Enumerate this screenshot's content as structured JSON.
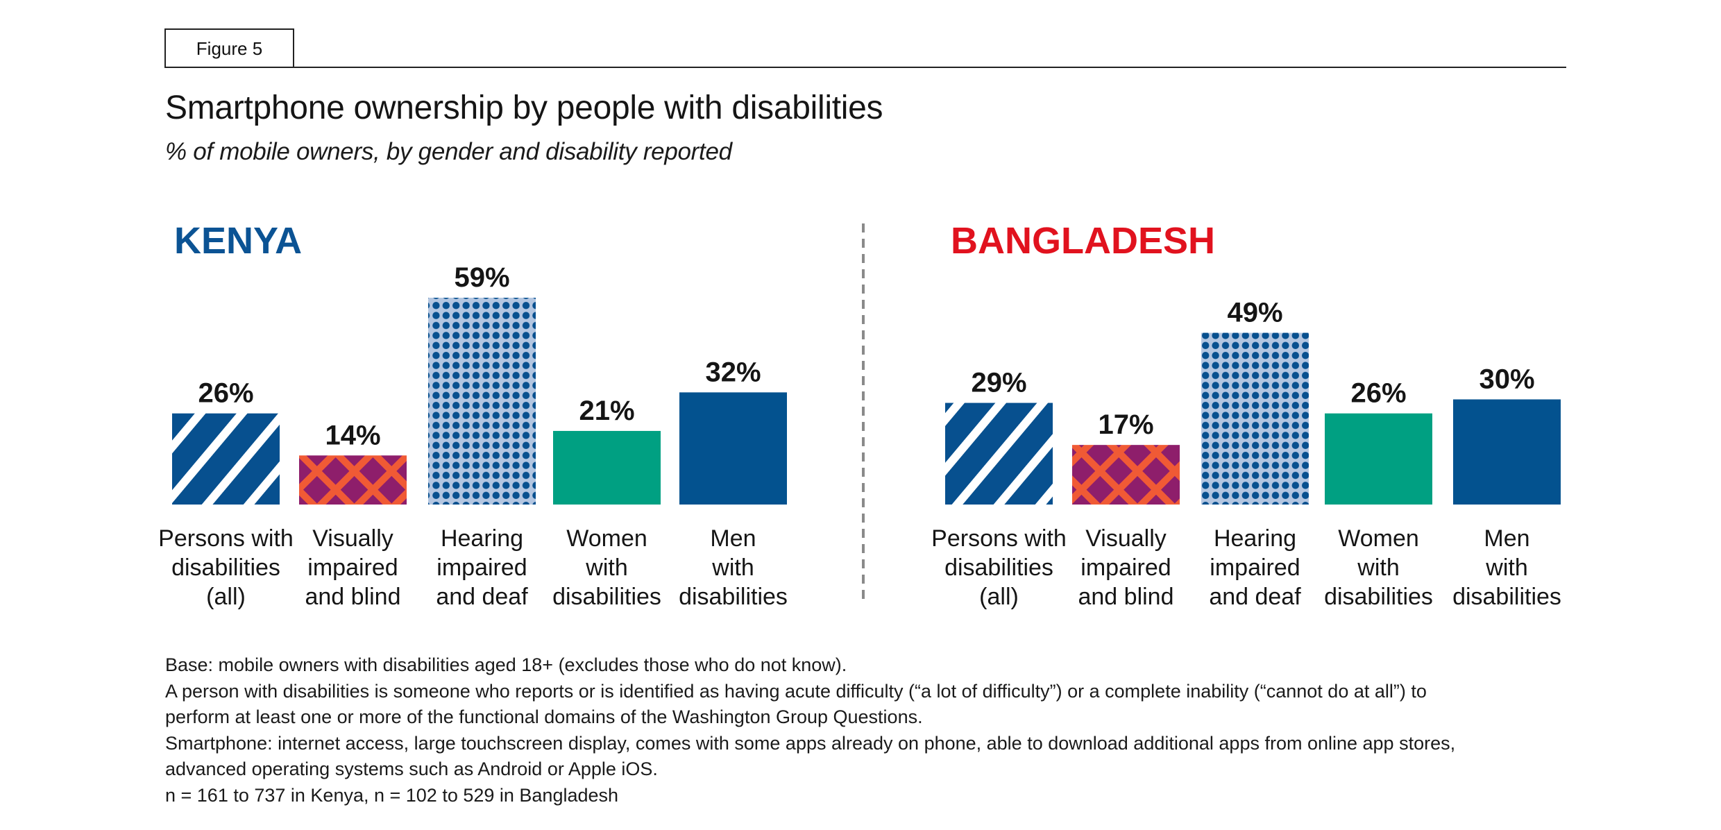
{
  "figure_label": "Figure 5",
  "title": "Smartphone ownership by people with disabilities",
  "subtitle": "% of mobile owners, by gender and disability reported",
  "colors": {
    "kenya_title": "#0B5394",
    "bangladesh_title": "#E1121E",
    "stripe_blue": "#07508F",
    "lattice_orange": "#F05A35",
    "lattice_purple": "#8E1E6B",
    "dot_blue": "#07508F",
    "dot_bg": "#B3C6E1",
    "teal": "#00A082",
    "navy": "#03528F"
  },
  "chart_data": [
    {
      "type": "bar",
      "title": "KENYA",
      "categories": [
        [
          "Persons with",
          "disabilities",
          "(all)"
        ],
        [
          "Visually",
          "impaired",
          "and blind"
        ],
        [
          "Hearing",
          "impaired",
          "and deaf"
        ],
        [
          "Women",
          "with",
          "disabilities"
        ],
        [
          "Men",
          "with",
          "disabilities"
        ]
      ],
      "values": [
        26,
        14,
        59,
        21,
        32
      ],
      "value_labels": [
        "26%",
        "14%",
        "59%",
        "21%",
        "32%"
      ],
      "fills": [
        "stripes",
        "lattice",
        "dots",
        "teal",
        "navy"
      ],
      "xlabel": "",
      "ylabel": "% of mobile owners",
      "ylim": [
        0,
        100
      ],
      "grid": false
    },
    {
      "type": "bar",
      "title": "BANGLADESH",
      "categories": [
        [
          "Persons with",
          "disabilities",
          "(all)"
        ],
        [
          "Visually",
          "impaired",
          "and blind"
        ],
        [
          "Hearing",
          "impaired",
          "and deaf"
        ],
        [
          "Women",
          "with",
          "disabilities"
        ],
        [
          "Men",
          "with",
          "disabilities"
        ]
      ],
      "values": [
        29,
        17,
        49,
        26,
        30
      ],
      "value_labels": [
        "29%",
        "17%",
        "49%",
        "26%",
        "30%"
      ],
      "fills": [
        "stripes",
        "lattice",
        "dots",
        "teal",
        "navy"
      ],
      "xlabel": "",
      "ylabel": "% of mobile owners",
      "ylim": [
        0,
        100
      ],
      "grid": false
    }
  ],
  "notes": [
    "Base: mobile owners with disabilities aged 18+ (excludes those who do not know).",
    "A person with disabilities is someone who reports or is identified as having acute difficulty (“a lot of difficulty”) or a complete inability (“cannot do at all”) to",
    "perform at least one or more of the functional domains of the Washington Group Questions.",
    "Smartphone: internet access, large touchscreen display, comes with some apps already on phone, able to download additional apps from online app stores,",
    "advanced operating systems such as Android or Apple iOS.",
    "n = 161 to 737 in Kenya, n = 102 to 529 in Bangladesh"
  ]
}
